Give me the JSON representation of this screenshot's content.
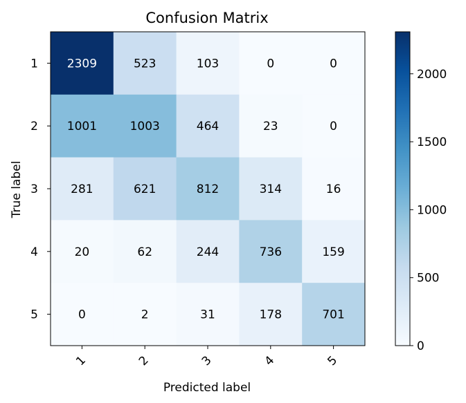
{
  "chart_data": {
    "type": "heatmap",
    "title": "Confusion Matrix",
    "xlabel": "Predicted label",
    "ylabel": "True label",
    "x_categories": [
      "1",
      "2",
      "3",
      "4",
      "5"
    ],
    "y_categories": [
      "1",
      "2",
      "3",
      "4",
      "5"
    ],
    "values": [
      [
        2309,
        523,
        103,
        0,
        0
      ],
      [
        1001,
        1003,
        464,
        23,
        0
      ],
      [
        281,
        621,
        812,
        314,
        16
      ],
      [
        20,
        62,
        244,
        736,
        159
      ],
      [
        0,
        2,
        31,
        178,
        701
      ]
    ],
    "value_labels": [
      [
        "2309",
        "523",
        "103",
        "0",
        "0"
      ],
      [
        "1001",
        "1003",
        "464",
        "23",
        "0"
      ],
      [
        "281",
        "621",
        "812",
        "314",
        "16"
      ],
      [
        "20",
        "62",
        "244",
        "736",
        "159"
      ],
      [
        "0",
        "2",
        "31",
        "178",
        "701"
      ]
    ],
    "colormap": "Blues",
    "color_range": [
      0,
      2309
    ],
    "colorbar_ticks": [
      0,
      500,
      1000,
      1500,
      2000
    ],
    "colorbar_tick_labels": [
      "0",
      "500",
      "1000",
      "1500",
      "2000"
    ],
    "grid": false
  }
}
